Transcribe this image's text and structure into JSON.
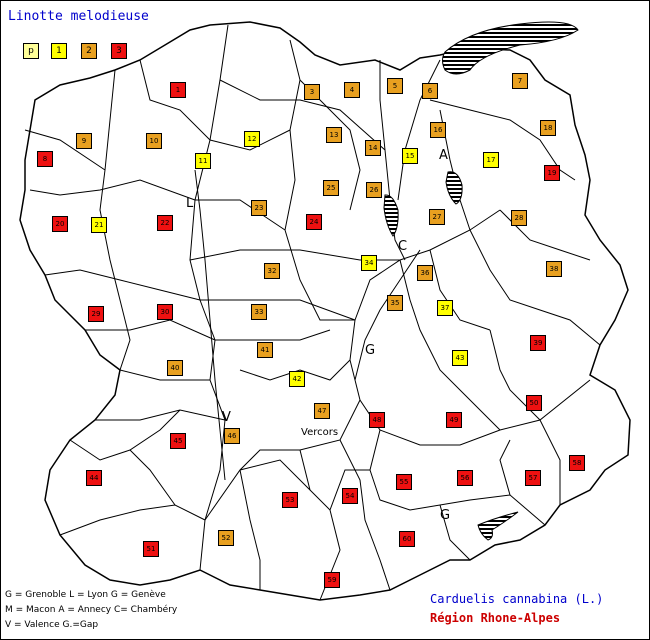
{
  "title": "Linotte melodieuse",
  "legend": [
    {
      "label": "p",
      "color": "#ffff99"
    },
    {
      "label": "1",
      "color": "#ffff00"
    },
    {
      "label": "2",
      "color": "#e8a020"
    },
    {
      "label": "3",
      "color": "#ee1111"
    }
  ],
  "cells": [
    {
      "label": "1",
      "status": 3
    },
    {
      "label": "3",
      "status": 2
    },
    {
      "label": "4",
      "status": 2
    },
    {
      "label": "5",
      "status": 2
    },
    {
      "label": "6",
      "status": 2
    },
    {
      "label": "7",
      "status": 2
    },
    {
      "label": "8",
      "status": 3
    },
    {
      "label": "9",
      "status": 2
    },
    {
      "label": "10",
      "status": 2
    },
    {
      "label": "11",
      "status": 1
    },
    {
      "label": "12",
      "status": 1
    },
    {
      "label": "13",
      "status": 2
    },
    {
      "label": "14",
      "status": 2
    },
    {
      "label": "15",
      "status": 1
    },
    {
      "label": "16",
      "status": 2
    },
    {
      "label": "17",
      "status": 1
    },
    {
      "label": "18",
      "status": 2
    },
    {
      "label": "19",
      "status": 3
    },
    {
      "label": "20",
      "status": 3
    },
    {
      "label": "21",
      "status": 1
    },
    {
      "label": "22",
      "status": 3
    },
    {
      "label": "23",
      "status": 2
    },
    {
      "label": "24",
      "status": 3
    },
    {
      "label": "25",
      "status": 2
    },
    {
      "label": "26",
      "status": 2
    },
    {
      "label": "27",
      "status": 2
    },
    {
      "label": "28",
      "status": 2
    },
    {
      "label": "29",
      "status": 3
    },
    {
      "label": "30",
      "status": 3
    },
    {
      "label": "32",
      "status": 2
    },
    {
      "label": "33",
      "status": 2
    },
    {
      "label": "34",
      "status": 1
    },
    {
      "label": "35",
      "status": 2
    },
    {
      "label": "36",
      "status": 2
    },
    {
      "label": "37",
      "status": 1
    },
    {
      "label": "38",
      "status": 2
    },
    {
      "label": "39",
      "status": 3
    },
    {
      "label": "40",
      "status": 2
    },
    {
      "label": "41",
      "status": 2
    },
    {
      "label": "42",
      "status": 1
    },
    {
      "label": "43",
      "status": 1
    },
    {
      "label": "45",
      "status": 3
    },
    {
      "label": "46",
      "status": 2
    },
    {
      "label": "47",
      "status": 2
    },
    {
      "label": "48",
      "status": 3
    },
    {
      "label": "49",
      "status": 3
    },
    {
      "label": "50",
      "status": 3
    },
    {
      "label": "44",
      "status": 3
    },
    {
      "label": "53",
      "status": 3
    },
    {
      "label": "54",
      "status": 3
    },
    {
      "label": "55",
      "status": 3
    },
    {
      "label": "56",
      "status": 3
    },
    {
      "label": "57",
      "status": 3
    },
    {
      "label": "58",
      "status": 3
    },
    {
      "label": "51",
      "status": 3
    },
    {
      "label": "52",
      "status": 2
    },
    {
      "label": "60",
      "status": 3
    },
    {
      "label": "59",
      "status": 3
    }
  ],
  "cities": [
    "L",
    "A",
    "C",
    "G",
    "V",
    "G"
  ],
  "vercors": "Vercors",
  "key_lines": [
    "G = Grenoble  L = Lyon     G = Genève",
    "M = Macon    A = Annecy  C= Chambéry",
    "V = Valence   G.=Gap"
  ],
  "species": "Carduelis cannabina (L.)",
  "region": "Région Rhone-Alpes"
}
